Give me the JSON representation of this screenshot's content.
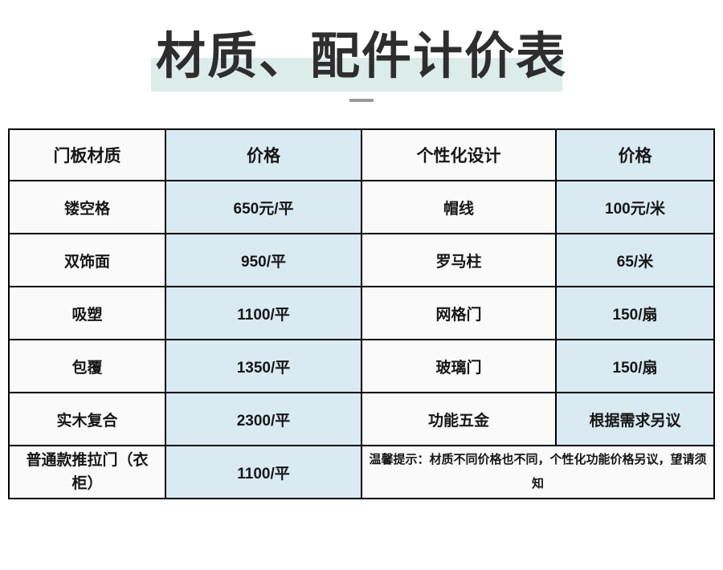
{
  "page": {
    "title": "材质、配件计价表"
  },
  "table": {
    "headers": [
      "门板材质",
      "价格",
      "个性化设计",
      "价格"
    ],
    "rows": [
      {
        "material": "镂空格",
        "material_price": "650元/平",
        "design": "帽线",
        "design_price": "100元/米"
      },
      {
        "material": "双饰面",
        "material_price": "950/平",
        "design": "罗马柱",
        "design_price": "65/米"
      },
      {
        "material": "吸塑",
        "material_price": "1100/平",
        "design": "网格门",
        "design_price": "150/扇"
      },
      {
        "material": "包覆",
        "material_price": "1350/平",
        "design": "玻璃门",
        "design_price": "150/扇"
      },
      {
        "material": "实木复合",
        "material_price": "2300/平",
        "design": "功能五金",
        "design_price": "根据需求另议"
      }
    ],
    "last_row": {
      "material": "普通款推拉门（衣柜）",
      "material_price": "1100/平",
      "note": "温馨提示：材质不同价格也不同，个性化功能价格另议，望请须知"
    }
  },
  "colors": {
    "price_column_bg": "#d9eaf2",
    "plain_column_bg": "#fafafa",
    "title_highlight": "#dcece9",
    "border": "#000000",
    "text": "#161616",
    "dash": "#9a9a9a"
  }
}
